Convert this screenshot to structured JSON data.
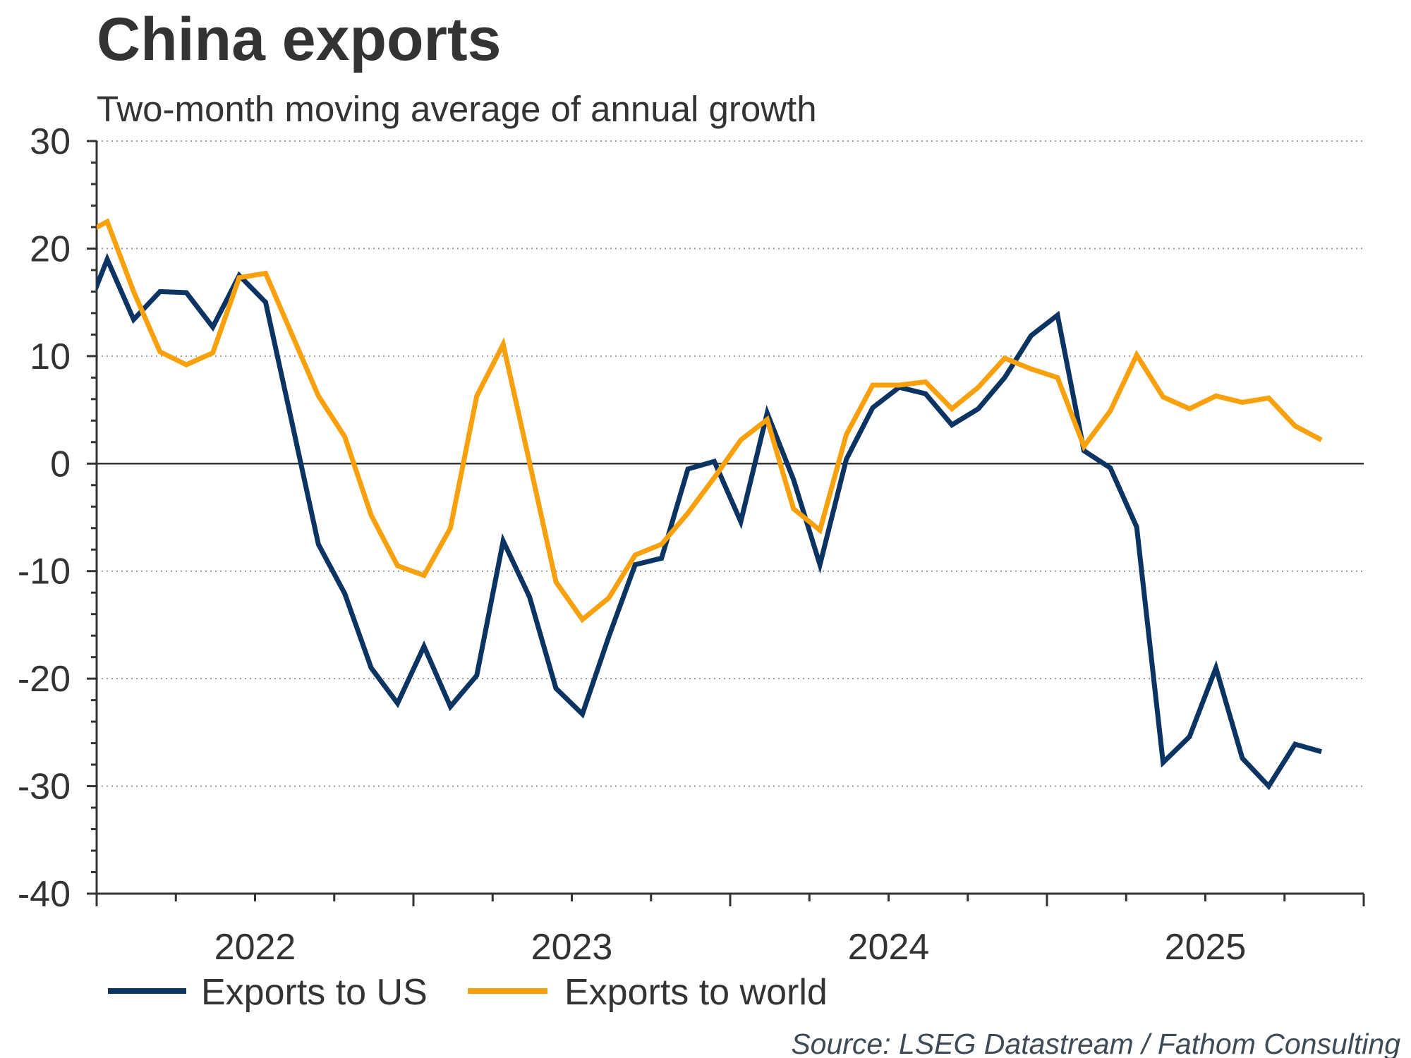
{
  "chart_data": {
    "type": "line",
    "title": "China exports",
    "subtitle": "Two-month moving average of annual growth",
    "xlabel": "",
    "ylabel": "",
    "ylim": [
      -40,
      30
    ],
    "yticks": [
      30,
      20,
      10,
      0,
      -10,
      -20,
      -30,
      -40
    ],
    "ytick_labels": [
      "30",
      "20",
      "10",
      "0",
      "-10",
      "-20",
      "-30",
      "-40"
    ],
    "y_minor_step": 2,
    "grid": true,
    "x_range": [
      "2022-01",
      "2025-12"
    ],
    "xtick_labels": [
      "2022",
      "2023",
      "2024",
      "2025"
    ],
    "x_tick_frequency": "quarterly",
    "x": [
      "2021-12",
      "2022-01",
      "2022-02",
      "2022-03",
      "2022-04",
      "2022-05",
      "2022-06",
      "2022-07",
      "2022-08",
      "2022-09",
      "2022-10",
      "2022-11",
      "2022-12",
      "2023-01",
      "2023-02",
      "2023-03",
      "2023-04",
      "2023-05",
      "2023-06",
      "2023-07",
      "2023-08",
      "2023-09",
      "2023-10",
      "2023-11",
      "2023-12",
      "2024-01",
      "2024-02",
      "2024-03",
      "2024-04",
      "2024-05",
      "2024-06",
      "2024-07",
      "2024-08",
      "2024-09",
      "2024-10",
      "2024-11",
      "2024-12",
      "2025-01",
      "2025-02",
      "2025-03",
      "2025-04",
      "2025-05",
      "2025-06",
      "2025-07",
      "2025-08",
      "2025-09",
      "2025-10",
      "2025-11"
    ],
    "series": [
      {
        "name": "Exports to US",
        "color": "#0b3463",
        "values": [
          12.8,
          19.0,
          13.4,
          16.0,
          15.9,
          12.7,
          17.5,
          15.0,
          3.8,
          -7.5,
          -12.1,
          -19.0,
          -22.3,
          -17.0,
          -22.6,
          -19.7,
          -7.2,
          -12.4,
          -20.9,
          -23.3,
          -16.1,
          -9.4,
          -8.8,
          -0.5,
          0.2,
          -5.4,
          4.7,
          -1.5,
          -9.4,
          0.4,
          5.2,
          7.1,
          6.5,
          3.6,
          5.1,
          8.0,
          11.9,
          13.8,
          1.2,
          -0.4,
          -5.9,
          -27.8,
          -25.4,
          -19.0,
          -27.4,
          -30.0,
          -26.1,
          -26.8
        ]
      },
      {
        "name": "Exports to world",
        "color": "#f9a00d",
        "values": [
          21.2,
          22.5,
          16.0,
          10.4,
          9.2,
          10.3,
          17.3,
          17.7,
          12.0,
          6.3,
          2.5,
          -4.8,
          -9.5,
          -10.4,
          -6.0,
          6.3,
          11.1,
          0.1,
          -11.0,
          -14.5,
          -12.5,
          -8.5,
          -7.5,
          -4.6,
          -1.3,
          2.2,
          4.1,
          -4.2,
          -6.2,
          2.7,
          7.3,
          7.3,
          7.6,
          5.1,
          7.1,
          9.8,
          8.8,
          8.0,
          1.6,
          4.9,
          10.1,
          6.2,
          5.1,
          6.3,
          5.7,
          6.1,
          3.5,
          2.2
        ]
      }
    ],
    "legend": {
      "placement": "bottom-left",
      "entries": [
        "Exports to US",
        "Exports to world"
      ]
    },
    "source": "Source: LSEG Datastream / Fathom Consulting"
  }
}
